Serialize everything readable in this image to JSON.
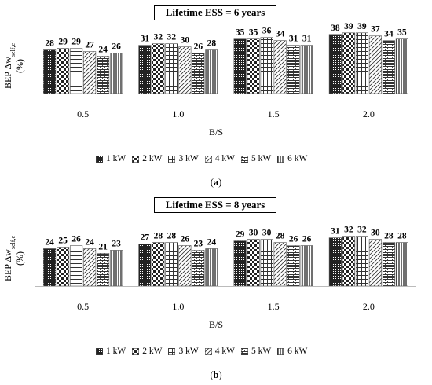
{
  "chart_data": [
    {
      "type": "bar",
      "title": "Lifetime ESS = 6 years",
      "xlabel": "B/S",
      "ylabel_main": "BEP Δw",
      "ylabel_sub": "self,c",
      "ylabel_unit": "(%)",
      "categories": [
        "0.5",
        "1.0",
        "1.5",
        "2.0"
      ],
      "series": [
        {
          "name": "1 kW",
          "values": [
            28,
            31,
            35,
            38
          ]
        },
        {
          "name": "2 kW",
          "values": [
            29,
            32,
            35,
            39
          ]
        },
        {
          "name": "3 kW",
          "values": [
            29,
            32,
            36,
            39
          ]
        },
        {
          "name": "4 kW",
          "values": [
            27,
            30,
            34,
            37
          ]
        },
        {
          "name": "5 kW",
          "values": [
            24,
            26,
            31,
            34
          ]
        },
        {
          "name": "6 kW",
          "values": [
            26,
            28,
            31,
            35
          ]
        }
      ],
      "ylim": [
        0,
        50
      ],
      "grid": false,
      "legend": "bottom",
      "panel_label": "a"
    },
    {
      "type": "bar",
      "title": "Lifetime ESS = 8 years",
      "xlabel": "B/S",
      "ylabel_main": "BEP Δw",
      "ylabel_sub": "self,c",
      "ylabel_unit": "(%)",
      "categories": [
        "0.5",
        "1.0",
        "1.5",
        "2.0"
      ],
      "series": [
        {
          "name": "1 kW",
          "values": [
            24,
            27,
            29,
            31
          ]
        },
        {
          "name": "2 kW",
          "values": [
            25,
            28,
            30,
            32
          ]
        },
        {
          "name": "3 kW",
          "values": [
            26,
            28,
            30,
            32
          ]
        },
        {
          "name": "4 kW",
          "values": [
            24,
            26,
            28,
            30
          ]
        },
        {
          "name": "5 kW",
          "values": [
            21,
            23,
            26,
            28
          ]
        },
        {
          "name": "6 kW",
          "values": [
            23,
            24,
            26,
            28
          ]
        }
      ],
      "ylim": [
        0,
        50
      ],
      "grid": false,
      "legend": "bottom",
      "panel_label": "b"
    }
  ]
}
